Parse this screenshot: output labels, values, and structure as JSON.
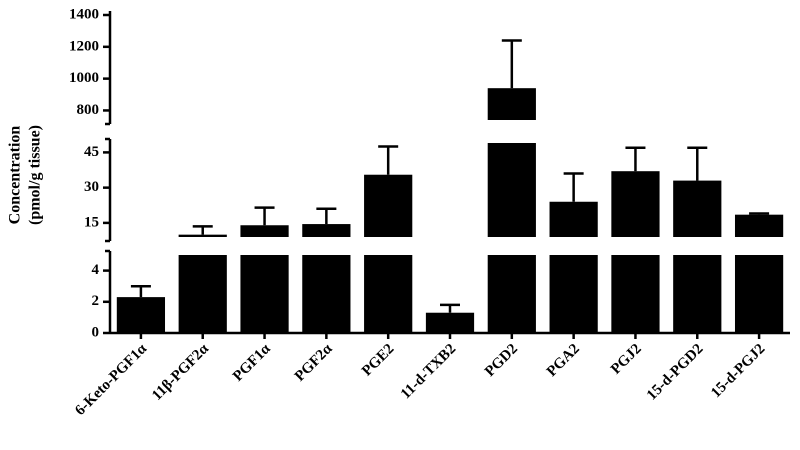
{
  "chart_data": {
    "type": "bar",
    "ylabel": [
      "Concentration",
      "(pmol/g tissue)"
    ],
    "categories": [
      "6-Keto-PGF1α",
      "11β-PGF2α",
      "PGF1α",
      "PGF2α",
      "PGE2",
      "11-d-TXB2",
      "PGD2",
      "PGA2",
      "PGJ2",
      "15-d-PGD2",
      "15-d-PGJ2"
    ],
    "values": [
      2.3,
      10,
      14,
      14.5,
      35.5,
      1.3,
      940,
      24,
      37,
      33,
      18.5
    ],
    "errors": [
      0.7,
      3.5,
      7.5,
      6.5,
      12,
      0.5,
      300,
      12,
      10,
      14,
      0.5
    ],
    "color": "#000000",
    "y_segments": [
      {
        "ylim": [
          0,
          5
        ],
        "yticks": [
          0,
          2,
          4
        ]
      },
      {
        "ylim": [
          9,
          49
        ],
        "yticks": [
          15,
          30,
          45
        ]
      },
      {
        "ylim": [
          740,
          1400
        ],
        "yticks": [
          800,
          1000,
          1200,
          1400
        ]
      }
    ]
  }
}
